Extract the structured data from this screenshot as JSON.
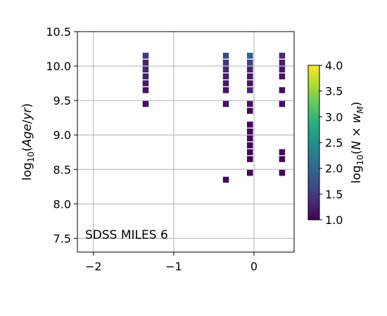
{
  "chart_data": {
    "type": "heatmap",
    "title": "",
    "xlabel": "",
    "ylabel": "log10(Age/yr)",
    "xlim": [
      -2.2,
      0.5
    ],
    "ylim": [
      7.3,
      10.5
    ],
    "xticks": [
      {
        "value": -2,
        "label": "−2"
      },
      {
        "value": -1,
        "label": "−1"
      },
      {
        "value": 0,
        "label": "0"
      }
    ],
    "yticks": [
      {
        "value": 7.5,
        "label": "7.5"
      },
      {
        "value": 8.0,
        "label": "8.0"
      },
      {
        "value": 8.5,
        "label": "8.5"
      },
      {
        "value": 9.0,
        "label": "9.0"
      },
      {
        "value": 9.5,
        "label": "9.5"
      },
      {
        "value": 10.0,
        "label": "10.0"
      },
      {
        "value": 10.5,
        "label": "10.5"
      }
    ],
    "grid": true,
    "annotation": "SDSS MILES 6",
    "colormap": "viridis",
    "colorbar": {
      "label": "log10(N×w_M)",
      "range": [
        1.0,
        4.0
      ],
      "ticks": [
        "1.0",
        "1.5",
        "2.0",
        "2.5",
        "3.0",
        "3.5",
        "4.0"
      ]
    },
    "points": [
      {
        "x": -1.35,
        "y": 10.15,
        "c": 1.5
      },
      {
        "x": -1.35,
        "y": 10.05,
        "c": 1.3
      },
      {
        "x": -1.35,
        "y": 9.95,
        "c": 1.3
      },
      {
        "x": -1.35,
        "y": 9.85,
        "c": 1.25
      },
      {
        "x": -1.35,
        "y": 9.75,
        "c": 1.2
      },
      {
        "x": -1.35,
        "y": 9.65,
        "c": 1.15
      },
      {
        "x": -1.35,
        "y": 9.45,
        "c": 1.1
      },
      {
        "x": -0.35,
        "y": 10.15,
        "c": 1.7
      },
      {
        "x": -0.35,
        "y": 10.05,
        "c": 1.45
      },
      {
        "x": -0.35,
        "y": 9.95,
        "c": 1.35
      },
      {
        "x": -0.35,
        "y": 9.85,
        "c": 1.25
      },
      {
        "x": -0.35,
        "y": 9.75,
        "c": 1.2
      },
      {
        "x": -0.35,
        "y": 9.65,
        "c": 1.15
      },
      {
        "x": -0.35,
        "y": 9.45,
        "c": 1.1
      },
      {
        "x": -0.35,
        "y": 8.35,
        "c": 1.05
      },
      {
        "x": -0.05,
        "y": 10.15,
        "c": 1.9
      },
      {
        "x": -0.05,
        "y": 10.05,
        "c": 1.55
      },
      {
        "x": -0.05,
        "y": 9.95,
        "c": 1.3
      },
      {
        "x": -0.05,
        "y": 9.85,
        "c": 1.2
      },
      {
        "x": -0.05,
        "y": 9.75,
        "c": 1.15
      },
      {
        "x": -0.05,
        "y": 9.65,
        "c": 1.3
      },
      {
        "x": -0.05,
        "y": 9.45,
        "c": 1.1
      },
      {
        "x": -0.05,
        "y": 9.35,
        "c": 1.05
      },
      {
        "x": -0.05,
        "y": 9.15,
        "c": 1.05
      },
      {
        "x": -0.05,
        "y": 9.05,
        "c": 1.05
      },
      {
        "x": -0.05,
        "y": 8.95,
        "c": 1.05
      },
      {
        "x": -0.05,
        "y": 8.85,
        "c": 1.05
      },
      {
        "x": -0.05,
        "y": 8.75,
        "c": 1.05
      },
      {
        "x": -0.05,
        "y": 8.65,
        "c": 1.05
      },
      {
        "x": -0.05,
        "y": 8.45,
        "c": 1.05
      },
      {
        "x": 0.35,
        "y": 10.15,
        "c": 1.35
      },
      {
        "x": 0.35,
        "y": 10.05,
        "c": 1.25
      },
      {
        "x": 0.35,
        "y": 9.95,
        "c": 1.2
      },
      {
        "x": 0.35,
        "y": 9.85,
        "c": 1.15
      },
      {
        "x": 0.35,
        "y": 9.65,
        "c": 1.1
      },
      {
        "x": 0.35,
        "y": 9.45,
        "c": 1.1
      },
      {
        "x": 0.35,
        "y": 8.75,
        "c": 1.05
      },
      {
        "x": 0.35,
        "y": 8.65,
        "c": 1.05
      },
      {
        "x": 0.35,
        "y": 8.45,
        "c": 1.05
      }
    ]
  }
}
